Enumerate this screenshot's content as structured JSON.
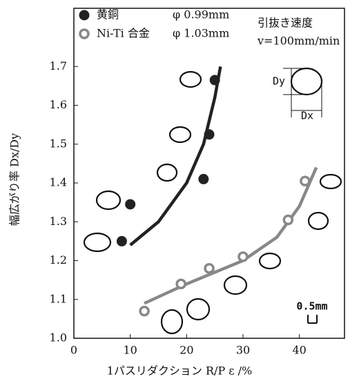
{
  "chart_data": {
    "type": "scatter",
    "y_label": "幅広がり率 Dx/Dy",
    "x_label": "1パスリダクション R/P ε /%",
    "xlim": [
      0,
      48
    ],
    "ylim": [
      1.0,
      1.85
    ],
    "xticks": [
      0,
      10,
      20,
      30,
      40
    ],
    "yticks": [
      {
        "value": 1.0,
        "label": "1.0"
      },
      1.1,
      1.2,
      1.3,
      1.4,
      1.5,
      1.6,
      1.7
    ],
    "series": [
      {
        "name": "黄銅",
        "size_label": "φ 0.99mm",
        "color": "#222222",
        "marker": "filled",
        "x": [
          8.5,
          10,
          23,
          24,
          25
        ],
        "values": [
          1.25,
          1.345,
          1.41,
          1.525,
          1.665
        ]
      },
      {
        "name": "Ni-Ti 合金",
        "size_label": "φ 1.03mm",
        "color": "#888888",
        "marker": "open",
        "x": [
          12.5,
          19,
          24,
          30,
          38,
          41
        ],
        "values": [
          1.07,
          1.14,
          1.18,
          1.21,
          1.305,
          1.405
        ]
      }
    ],
    "fits": [
      {
        "color": "#222222",
        "x": [
          10,
          15,
          20,
          23,
          25,
          26
        ],
        "values": [
          1.24,
          1.3,
          1.4,
          1.5,
          1.62,
          1.7
        ]
      },
      {
        "color": "#888888",
        "x": [
          12.5,
          20,
          30,
          36,
          40,
          43
        ],
        "values": [
          1.09,
          1.14,
          1.2,
          1.26,
          1.34,
          1.44
        ]
      }
    ],
    "speed_title": "引抜き速度",
    "speed": "v=100mm/min",
    "scale_label": "0.5mm",
    "inset_dy": "Dy",
    "inset_dx": "Dx"
  }
}
